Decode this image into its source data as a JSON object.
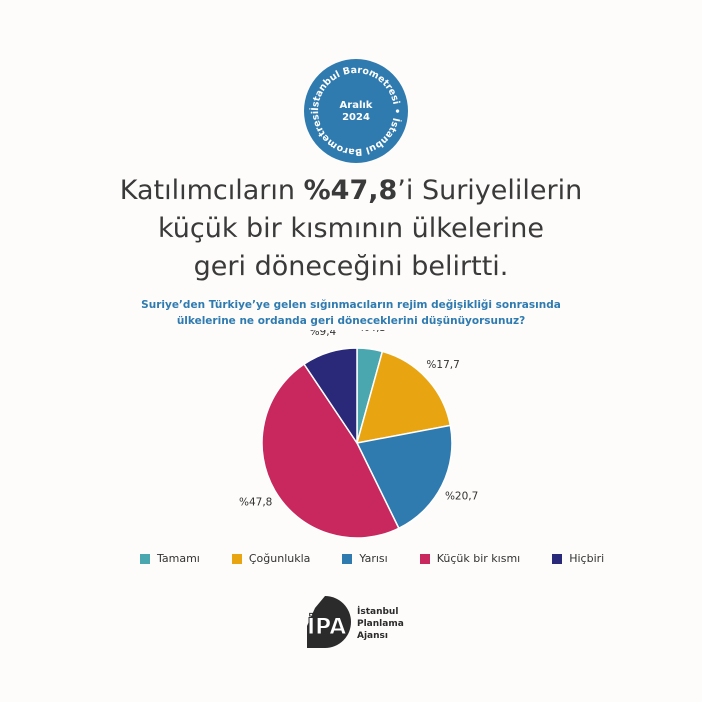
{
  "badge": {
    "ring_text": "İstanbul Barometresi • İstanbul Barometresi •",
    "month": "Aralık",
    "year": "2024",
    "color": "#2f7bb0"
  },
  "headline": {
    "pre": "Katılımcıların ",
    "highlight": "%47,8",
    "post": "’i Suriyelilerin",
    "line2": "küçük bir kısmının ülkelerine",
    "line3": "geri döneceğini belirtti."
  },
  "question": {
    "line1": "Suriye’den Türkiye’ye gelen sığınmacıların rejim değişikliği sonrasında",
    "line2": "ülkelerine ne ordanda geri döneceklerini düşünüyorsunuz?"
  },
  "chart_data": {
    "type": "pie",
    "categories": [
      "Tamamı",
      "Çoğunlukla",
      "Yarısı",
      "Küçük bir kısmı",
      "Hiçbiri"
    ],
    "values": [
      4.3,
      17.7,
      20.7,
      47.8,
      9.4
    ],
    "labels": [
      "%4,3",
      "%17,7",
      "%20,7",
      "%47,8",
      "%9,4"
    ],
    "colors": [
      "#4aa7b0",
      "#e8a511",
      "#2f7bb0",
      "#c8285e",
      "#2a2878"
    ],
    "start": "top",
    "direction": "clockwise",
    "legend": "bottom"
  },
  "logo": {
    "mark": "İPA",
    "line1": "İstanbul",
    "line2": "Planlama",
    "line3": "Ajansı"
  }
}
